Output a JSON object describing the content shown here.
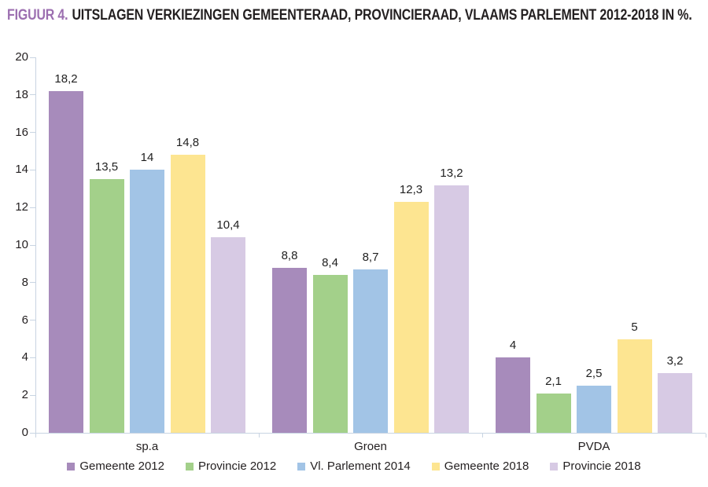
{
  "title": {
    "prefix": "FIGUUR 4.",
    "text": "UITSLAGEN VERKIEZINGEN GEMEENTERAAD, PROVINCIERAAD, VLAAMS PARLEMENT 2012-2018 IN %."
  },
  "colors": {
    "title_accent": "#9C6FB0",
    "title_text": "#231F20",
    "axis": "#C8D4E2",
    "value_label": "#1f1f1f"
  },
  "chart_data": {
    "type": "bar",
    "categories": [
      "sp.a",
      "Groen",
      "PVDA"
    ],
    "series": [
      {
        "name": "Gemeente 2012",
        "color": "#A78BBB",
        "values": [
          18.2,
          8.8,
          4.0
        ],
        "labels": [
          "18,2",
          "8,8",
          "4"
        ]
      },
      {
        "name": "Provincie 2012",
        "color": "#A3D08A",
        "values": [
          13.5,
          8.4,
          2.1
        ],
        "labels": [
          "13,5",
          "8,4",
          "2,1"
        ]
      },
      {
        "name": "Vl. Parlement 2014",
        "color": "#A2C4E6",
        "values": [
          14.0,
          8.7,
          2.5
        ],
        "labels": [
          "14",
          "8,7",
          "2,5"
        ]
      },
      {
        "name": "Gemeente 2018",
        "color": "#FDE591",
        "values": [
          14.8,
          12.3,
          5.0
        ],
        "labels": [
          "14,8",
          "12,3",
          "5"
        ]
      },
      {
        "name": "Provincie 2018",
        "color": "#D7CAE4",
        "values": [
          10.4,
          13.2,
          3.2
        ],
        "labels": [
          "10,4",
          "13,2",
          "3,2"
        ]
      }
    ],
    "title": "FIGUUR 4. UITSLAGEN VERKIEZINGEN GEMEENTERAAD, PROVINCIERAAD, VLAAMS PARLEMENT 2012-2018 IN %.",
    "xlabel": "",
    "ylabel": "",
    "ylim": [
      0,
      20
    ],
    "ytick_step": 2,
    "grid": false,
    "legend_position": "bottom"
  }
}
